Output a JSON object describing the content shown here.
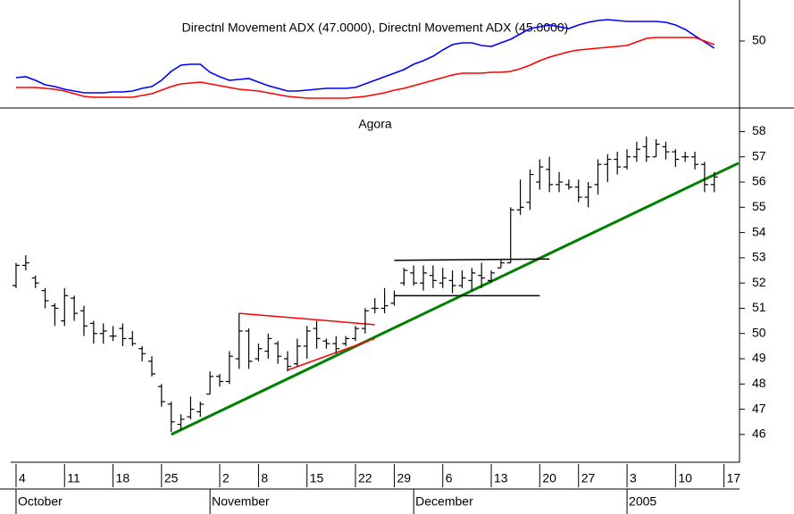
{
  "chart_data": [
    {
      "type": "line",
      "title": "Directnl Movement ADX (47.0000), Directnl Movement ADX (45.0000)",
      "xlim": [
        -0.55,
        74.6
      ],
      "ylim": [
        35.2,
        59.2
      ],
      "yticks": [
        50
      ],
      "series": [
        {
          "color": "#0000ff",
          "values": [
            41.8,
            42,
            41.2,
            40.2,
            39.8,
            39.2,
            38.8,
            38.4,
            38.4,
            38.4,
            38.6,
            38.6,
            38.8,
            39.4,
            39.8,
            41.2,
            43.2,
            44.6,
            44.8,
            44.8,
            43,
            42,
            41.2,
            41.4,
            41.6,
            40.8,
            40,
            39.4,
            38.8,
            38.8,
            39,
            39.2,
            39.4,
            39.4,
            39.4,
            39.6,
            40.4,
            41.2,
            42,
            42.8,
            43.6,
            44.8,
            45.6,
            46.6,
            48,
            49.2,
            49.6,
            49.6,
            49,
            48.8,
            49.6,
            50.4,
            51.6,
            52.8,
            53.2,
            53.6,
            53.2,
            52.8,
            53.6,
            54.2,
            54.6,
            54.8,
            54.6,
            54.4,
            54.4,
            54.4,
            54.4,
            54.2,
            53.6,
            52.6,
            51.2,
            49.8,
            48.4
          ]
        },
        {
          "color": "#ff0000",
          "values": [
            39.6,
            39.6,
            39.6,
            39.4,
            39.2,
            38.8,
            38.2,
            37.6,
            37.4,
            37.4,
            37.4,
            37.4,
            37.4,
            37.8,
            38.2,
            39,
            39.8,
            40.4,
            40.6,
            40.8,
            40.4,
            40,
            39.6,
            39.2,
            39,
            38.8,
            38.4,
            38,
            37.6,
            37.4,
            37.2,
            37.2,
            37.2,
            37.2,
            37.2,
            37.4,
            37.6,
            38,
            38.4,
            39,
            39.4,
            40,
            40.6,
            41.2,
            41.8,
            42.4,
            42.8,
            42.8,
            42.8,
            43,
            43,
            43.2,
            43.8,
            44.6,
            45.6,
            46.4,
            47,
            47.6,
            48,
            48.2,
            48.4,
            48.6,
            48.8,
            49,
            49.8,
            50.6,
            50.8,
            50.8,
            50.8,
            50.8,
            50.8,
            50,
            49.2
          ]
        }
      ]
    },
    {
      "type": "ohlc",
      "title": "Agora",
      "xlim": [
        -0.55,
        74.6
      ],
      "ylim": [
        44.9,
        58.9
      ],
      "yticks": [
        46,
        47,
        48,
        49,
        50,
        51,
        52,
        53,
        54,
        55,
        56,
        57,
        58
      ],
      "color": "#000000",
      "open": [
        51.9,
        52.7,
        52.2,
        51.7,
        51.1,
        50.5,
        51.4,
        50.9,
        50.4,
        50.0,
        49.9,
        50.2,
        49.8,
        49.4,
        48.9,
        47.9,
        47.2,
        46.4,
        46.7,
        46.9,
        47.6,
        48.3,
        48.1,
        49.0,
        50.1,
        49.0,
        49.3,
        49.6,
        49.0,
        48.8,
        49.5,
        50.2,
        49.7,
        49.6,
        49.6,
        49.8,
        50.2,
        51.0,
        51.0,
        51.2,
        52.0,
        52.4,
        52.0,
        52.3,
        52.0,
        52.1,
        51.9,
        52.1,
        52.3,
        52.1,
        52.6,
        52.8,
        54.9,
        55.2,
        56.0,
        56.5,
        55.9,
        55.9,
        55.8,
        55.4,
        55.9,
        56.7,
        56.9,
        56.6,
        57.0,
        57.4,
        57.0,
        57.4,
        57.2,
        57.0,
        57.0,
        56.7,
        55.9
      ],
      "high": [
        52.8,
        53.1,
        52.3,
        51.8,
        51.2,
        51.8,
        51.5,
        51.1,
        50.5,
        50.4,
        50.3,
        50.4,
        50.1,
        49.5,
        49.1,
        48.0,
        47.3,
        46.8,
        47.5,
        47.3,
        48.5,
        48.4,
        49.3,
        50.8,
        50.2,
        49.6,
        50.0,
        49.7,
        49.3,
        49.8,
        50.3,
        50.5,
        49.8,
        49.9,
        49.9,
        50.3,
        51.0,
        51.4,
        51.8,
        51.7,
        52.6,
        52.7,
        52.7,
        52.7,
        52.6,
        52.5,
        52.5,
        52.6,
        52.8,
        52.5,
        52.9,
        55.0,
        56.1,
        56.5,
        56.9,
        57.0,
        56.4,
        56.1,
        56.1,
        56.0,
        56.9,
        57.1,
        57.2,
        57.3,
        57.6,
        57.8,
        57.7,
        57.6,
        57.3,
        57.2,
        57.2,
        56.8,
        56.4
      ],
      "low": [
        51.8,
        52.5,
        51.8,
        51.0,
        50.3,
        50.3,
        50.5,
        49.9,
        49.6,
        49.6,
        49.7,
        49.5,
        49.5,
        48.9,
        48.3,
        47.1,
        46.1,
        46.2,
        46.6,
        46.7,
        47.6,
        47.9,
        48.0,
        48.6,
        48.6,
        48.9,
        49.0,
        48.8,
        48.5,
        48.7,
        49.0,
        49.4,
        49.4,
        49.2,
        49.5,
        49.7,
        50.0,
        50.8,
        50.8,
        51.1,
        51.9,
        51.9,
        51.7,
        51.8,
        51.8,
        51.6,
        51.8,
        51.7,
        51.8,
        52.0,
        52.6,
        52.8,
        54.7,
        54.9,
        55.7,
        55.6,
        55.6,
        55.7,
        55.2,
        55.0,
        55.5,
        56.0,
        56.3,
        56.5,
        56.8,
        56.8,
        57.0,
        56.9,
        56.6,
        56.8,
        56.5,
        55.6,
        55.6
      ],
      "close": [
        52.7,
        52.8,
        52.0,
        51.3,
        51.0,
        51.5,
        50.8,
        50.3,
        50.0,
        50.1,
        49.9,
        49.8,
        49.6,
        49.2,
        48.4,
        47.3,
        46.5,
        46.6,
        47.0,
        47.2,
        48.3,
        48.1,
        49.1,
        50.1,
        48.9,
        49.4,
        49.8,
        49.1,
        48.7,
        49.5,
        50.1,
        49.8,
        49.6,
        49.4,
        49.8,
        50.2,
        50.9,
        51.0,
        51.1,
        51.5,
        52.5,
        52.0,
        52.4,
        52.1,
        52.2,
        51.9,
        52.2,
        52.4,
        52.2,
        52.4,
        52.8,
        54.9,
        55.0,
        56.3,
        56.6,
        55.9,
        56.0,
        55.8,
        55.4,
        55.8,
        56.7,
        56.9,
        56.6,
        57.0,
        57.3,
        57.0,
        57.5,
        57.2,
        56.9,
        57.0,
        56.7,
        55.9,
        56.2
      ],
      "trendlines": [
        {
          "color": "#008000",
          "x": [
            16,
            74.5
          ],
          "y": [
            46.0,
            56.75
          ]
        },
        {
          "color": "#ff0000",
          "x": [
            23,
            37
          ],
          "y": [
            50.8,
            50.35
          ]
        },
        {
          "color": "#ff0000",
          "x": [
            28,
            37
          ],
          "y": [
            48.55,
            49.8
          ]
        },
        {
          "color": "#000000",
          "x": [
            39,
            55
          ],
          "y": [
            52.9,
            52.95
          ]
        },
        {
          "color": "#000000",
          "x": [
            39,
            54
          ],
          "y": [
            51.5,
            51.5
          ]
        }
      ],
      "xticks": [
        {
          "value": 0,
          "label": "4"
        },
        {
          "value": 5,
          "label": "11"
        },
        {
          "value": 10,
          "label": "18"
        },
        {
          "value": 15,
          "label": "25"
        },
        {
          "value": 21,
          "label": "2"
        },
        {
          "value": 25,
          "label": "8"
        },
        {
          "value": 30,
          "label": "15"
        },
        {
          "value": 35,
          "label": "22"
        },
        {
          "value": 39,
          "label": "29"
        },
        {
          "value": 44,
          "label": "6"
        },
        {
          "value": 49,
          "label": "13"
        },
        {
          "value": 54,
          "label": "20"
        },
        {
          "value": 58,
          "label": "27"
        },
        {
          "value": 63,
          "label": "3"
        },
        {
          "value": 68,
          "label": "10"
        },
        {
          "value": 73,
          "label": "17"
        }
      ],
      "x_month_labels": [
        {
          "value": 0,
          "label": "October"
        },
        {
          "value": 20,
          "label": "November"
        },
        {
          "value": 41,
          "label": "December"
        },
        {
          "value": 63,
          "label": "2005"
        }
      ]
    }
  ]
}
